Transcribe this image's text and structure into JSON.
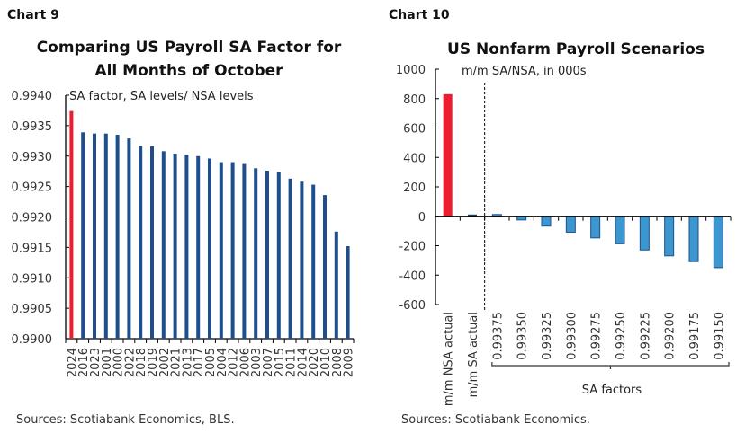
{
  "chart_data": [
    {
      "type": "bar",
      "number_label": "Chart 9",
      "title_lines": [
        "Comparing US Payroll SA Factor for",
        "All Months of October"
      ],
      "annotation": "SA factor, SA levels/ NSA levels",
      "categories": [
        "2024",
        "2016",
        "2023",
        "2001",
        "2000",
        "2022",
        "2018",
        "2019",
        "2002",
        "2021",
        "2013",
        "2017",
        "2005",
        "2004",
        "2012",
        "2006",
        "2003",
        "2007",
        "2015",
        "2011",
        "2014",
        "2020",
        "2010",
        "2008",
        "2009"
      ],
      "values": [
        0.99374,
        0.99339,
        0.99337,
        0.99337,
        0.99335,
        0.99329,
        0.99317,
        0.99316,
        0.99308,
        0.99304,
        0.99302,
        0.993,
        0.99296,
        0.9929,
        0.9929,
        0.99287,
        0.9928,
        0.99276,
        0.99274,
        0.99263,
        0.99258,
        0.99253,
        0.99236,
        0.99176,
        0.99152
      ],
      "highlight_index": 0,
      "ylim": [
        0.99,
        0.994
      ],
      "yticks": [
        "0.9900",
        "0.9905",
        "0.9910",
        "0.9915",
        "0.9920",
        "0.9925",
        "0.9930",
        "0.9935",
        "0.9940"
      ],
      "colors": {
        "highlight": "#ed1c2e",
        "bars": "#1f4e8c"
      },
      "source": "Sources: Scotiabank Economics, BLS."
    },
    {
      "type": "bar",
      "number_label": "Chart 10",
      "title_lines": [
        "US Nonfarm Payroll Scenarios"
      ],
      "annotation": "m/m SA/NSA, in 000s",
      "categories": [
        "m/m NSA actual",
        "m/m SA actual",
        "0.99375",
        "0.99350",
        "0.99325",
        "0.99300",
        "0.99275",
        "0.99250",
        "0.99225",
        "0.99200",
        "0.99175",
        "0.99150"
      ],
      "values": [
        830,
        12,
        12,
        -25,
        -67,
        -108,
        -147,
        -187,
        -229,
        -269,
        -308,
        -349
      ],
      "group_label": "SA factors",
      "ylim": [
        -600,
        1000
      ],
      "yticks": [
        "-600",
        "-400",
        "-200",
        "0",
        "200",
        "400",
        "600",
        "800",
        "1000"
      ],
      "colors": {
        "highlight": "#ed1c2e",
        "actual": "#1f3f73",
        "scenarios": "#3d97cf",
        "scenario_border": "#1f4e8c"
      },
      "source": "Sources: Scotiabank Economics."
    }
  ]
}
